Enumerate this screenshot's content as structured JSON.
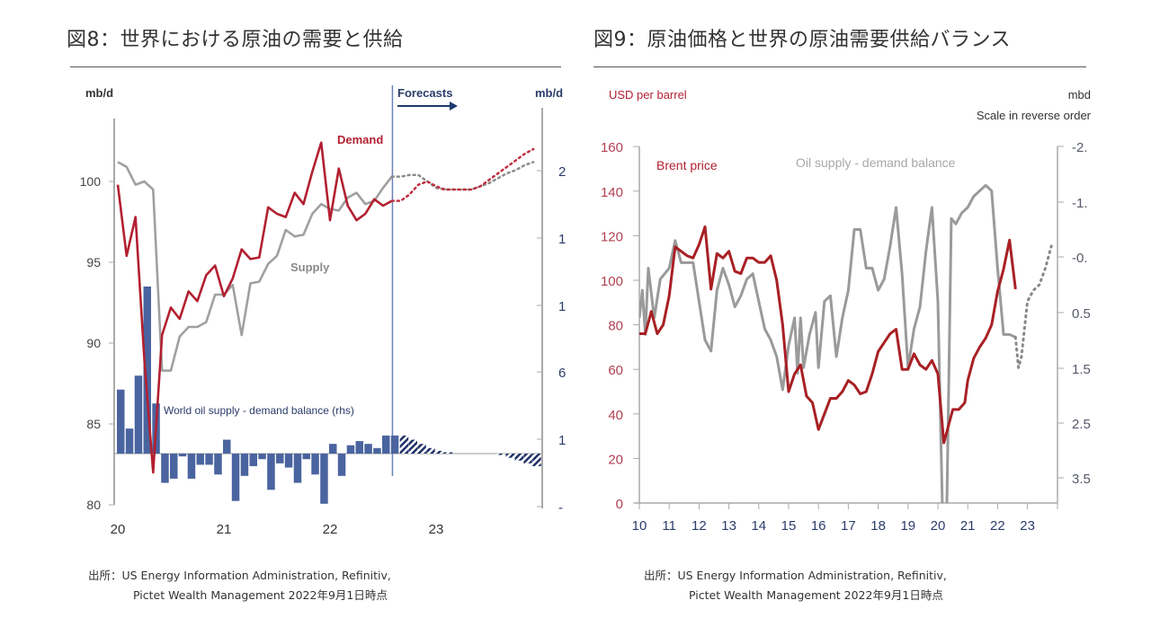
{
  "figures": [
    {
      "title": "図8：世界における原油の需要と供給",
      "source_line1": "出所：US Energy Information Administration,  Refinitiv,",
      "source_line2": "Pictet Wealth Management  2022年9月1日時点"
    },
    {
      "title": "図9：原油価格と世界の原油需要供給バランス",
      "source_line1": "出所：US Energy Information Administration, Refinitiv,",
      "source_line2": "Pictet Wealth Management  2022年9月1日時点"
    }
  ],
  "colors": {
    "demand": "#b22030",
    "supply": "#a0a0a0",
    "balance_bar": "#4a64a0",
    "forecast_line": "#6a84b8",
    "brent": "#a82024",
    "balance_line": "#9a9a9a",
    "axis_text_left_red": "#b04050",
    "navy_text": "#2a3c6a"
  },
  "chart_data": [
    {
      "type": "line",
      "title": "図8：世界における原油の需要と供給",
      "ylabel_left": "mb/d",
      "ylabel_right": "mb/d",
      "ylim_left": [
        80,
        103
      ],
      "yticks_left": [
        "100",
        "95",
        "90",
        "85",
        "80"
      ],
      "ytick_values_left": [
        100,
        95,
        90,
        85,
        80
      ],
      "yticks_right_labels": [
        "2",
        "1",
        "1",
        "6",
        "1",
        "-"
      ],
      "xticks": [
        "20",
        "21",
        "22",
        "23"
      ],
      "xtick_values": [
        2020,
        2021,
        2022,
        2023
      ],
      "forecast_label": "Forecasts",
      "forecast_start": 2022.58,
      "annotations": {
        "demand": "Demand",
        "supply": "Supply",
        "balance": "World oil supply - demand balance (rhs)"
      },
      "series": [
        {
          "name": "Demand",
          "x": [
            2020.0,
            2020.083,
            2020.167,
            2020.25,
            2020.333,
            2020.417,
            2020.5,
            2020.583,
            2020.667,
            2020.75,
            2020.833,
            2020.917,
            2021.0,
            2021.083,
            2021.167,
            2021.25,
            2021.333,
            2021.417,
            2021.5,
            2021.583,
            2021.667,
            2021.75,
            2021.833,
            2021.917,
            2022.0,
            2022.083,
            2022.167,
            2022.25,
            2022.333,
            2022.417,
            2022.5,
            2022.583
          ],
          "values": [
            99.8,
            95.4,
            97.8,
            89.0,
            82.0,
            90.5,
            92.2,
            91.5,
            93.2,
            92.6,
            94.2,
            94.8,
            92.9,
            94.0,
            95.8,
            95.2,
            95.3,
            98.4,
            98.0,
            97.8,
            99.3,
            98.6,
            100.6,
            102.4,
            97.6,
            100.8,
            98.5,
            97.6,
            98.0,
            98.9,
            98.5,
            98.8
          ]
        },
        {
          "name": "Supply",
          "x": [
            2020.0,
            2020.083,
            2020.167,
            2020.25,
            2020.333,
            2020.417,
            2020.5,
            2020.583,
            2020.667,
            2020.75,
            2020.833,
            2020.917,
            2021.0,
            2021.083,
            2021.167,
            2021.25,
            2021.333,
            2021.417,
            2021.5,
            2021.583,
            2021.667,
            2021.75,
            2021.833,
            2021.917,
            2022.0,
            2022.083,
            2022.167,
            2022.25,
            2022.333,
            2022.417,
            2022.5,
            2022.583
          ],
          "values": [
            101.2,
            100.9,
            99.8,
            100.0,
            99.5,
            88.3,
            88.3,
            90.4,
            91.0,
            91.0,
            91.3,
            93.0,
            93.0,
            93.6,
            90.5,
            93.7,
            93.8,
            94.9,
            95.4,
            97.0,
            96.6,
            96.7,
            98.0,
            98.6,
            98.3,
            98.2,
            99.0,
            99.3,
            98.6,
            98.8,
            99.6,
            100.3
          ]
        },
        {
          "name": "Demand forecast",
          "style": "dotted",
          "x": [
            2022.583,
            2022.667,
            2022.75,
            2022.833,
            2022.917,
            2023.0,
            2023.083,
            2023.167,
            2023.25,
            2023.333,
            2023.417,
            2023.5,
            2023.583,
            2023.667,
            2023.75,
            2023.833,
            2023.917
          ],
          "values": [
            98.8,
            98.8,
            99.2,
            99.8,
            100.0,
            99.7,
            99.5,
            99.5,
            99.5,
            99.5,
            99.7,
            100.1,
            100.5,
            100.9,
            101.3,
            101.7,
            102.0
          ]
        },
        {
          "name": "Supply forecast",
          "style": "dotted",
          "x": [
            2022.583,
            2022.667,
            2022.75,
            2022.833,
            2022.917,
            2023.0,
            2023.083,
            2023.167,
            2023.25,
            2023.333,
            2023.417,
            2023.5,
            2023.583,
            2023.667,
            2023.75,
            2023.833,
            2023.917
          ],
          "values": [
            100.3,
            100.3,
            100.4,
            100.4,
            100.0,
            99.6,
            99.5,
            99.5,
            99.5,
            99.5,
            99.7,
            99.9,
            100.2,
            100.5,
            100.7,
            101.0,
            101.2
          ]
        },
        {
          "name": "World oil supply - demand balance (rhs)",
          "type": "bar",
          "x": [
            2020.0,
            2020.083,
            2020.167,
            2020.25,
            2020.333,
            2020.417,
            2020.5,
            2020.583,
            2020.667,
            2020.75,
            2020.833,
            2020.917,
            2021.0,
            2021.083,
            2021.167,
            2021.25,
            2021.333,
            2021.417,
            2021.5,
            2021.583,
            2021.667,
            2021.75,
            2021.833,
            2021.917,
            2022.0,
            2022.083,
            2022.167,
            2022.25,
            2022.333,
            2022.417,
            2022.5,
            2022.583
          ],
          "values": [
            4.6,
            1.8,
            5.6,
            12.0,
            3.6,
            -2.1,
            -1.8,
            -0.2,
            -1.8,
            -0.8,
            -0.8,
            -1.5,
            1.0,
            -3.4,
            -1.6,
            -0.9,
            -0.4,
            -2.6,
            -0.7,
            -1.0,
            -2.1,
            -0.4,
            -1.5,
            -3.6,
            0.7,
            -1.6,
            0.6,
            0.9,
            0.7,
            0.4,
            1.3,
            1.3
          ]
        },
        {
          "name": "Balance forecast",
          "type": "bar",
          "style": "hatched",
          "x": [
            2022.667,
            2022.75,
            2022.833,
            2022.917,
            2023.0,
            2023.083,
            2023.167,
            2023.25,
            2023.333,
            2023.417,
            2023.5,
            2023.583,
            2023.667,
            2023.75,
            2023.833,
            2023.917
          ],
          "values": [
            1.3,
            1.0,
            0.7,
            0.4,
            0.2,
            0.1,
            0.0,
            0.0,
            0.0,
            0.0,
            0.0,
            -0.1,
            -0.3,
            -0.5,
            -0.7,
            -0.9
          ]
        }
      ]
    },
    {
      "type": "line",
      "title": "図9：原油価格と世界の原油需要供給バランス",
      "ylabel_left": "USD per barrel",
      "ylabel_right": "mbd",
      "ylabel_right_note": "Scale in reverse order",
      "ylim_left": [
        0,
        160
      ],
      "yticks_left": [
        "160",
        "140",
        "120",
        "100",
        "80",
        "60",
        "40",
        "20",
        "0"
      ],
      "ytick_values_left": [
        160,
        140,
        120,
        100,
        80,
        60,
        40,
        20,
        0
      ],
      "yticks_right_labels": [
        "-2.",
        "-1.",
        "-0.",
        "0.5",
        "1.5",
        "2.5",
        "3.5"
      ],
      "xticks": [
        "10",
        "11",
        "12",
        "13",
        "14",
        "15",
        "16",
        "17",
        "18",
        "19",
        "20",
        "21",
        "22",
        "23"
      ],
      "xtick_values": [
        2010,
        2011,
        2012,
        2013,
        2014,
        2015,
        2016,
        2017,
        2018,
        2019,
        2020,
        2021,
        2022,
        2023
      ],
      "annotations": {
        "brent": "Brent price",
        "balance": "Oil supply - demand balance"
      },
      "series": [
        {
          "name": "Brent price",
          "x": [
            2010.0,
            2010.2,
            2010.4,
            2010.6,
            2010.8,
            2011.0,
            2011.2,
            2011.4,
            2011.6,
            2011.8,
            2012.0,
            2012.2,
            2012.4,
            2012.6,
            2012.8,
            2013.0,
            2013.2,
            2013.4,
            2013.6,
            2013.8,
            2014.0,
            2014.2,
            2014.4,
            2014.6,
            2014.8,
            2015.0,
            2015.2,
            2015.4,
            2015.6,
            2015.8,
            2016.0,
            2016.2,
            2016.4,
            2016.6,
            2016.8,
            2017.0,
            2017.2,
            2017.4,
            2017.6,
            2017.8,
            2018.0,
            2018.2,
            2018.4,
            2018.6,
            2018.8,
            2019.0,
            2019.2,
            2019.4,
            2019.6,
            2019.8,
            2020.0,
            2020.2,
            2020.3,
            2020.5,
            2020.7,
            2020.9,
            2021.0,
            2021.2,
            2021.4,
            2021.6,
            2021.8,
            2022.0,
            2022.2,
            2022.4,
            2022.6
          ],
          "values": [
            76,
            76,
            86,
            76,
            80,
            93,
            115,
            113,
            111,
            110,
            116,
            124,
            96,
            112,
            110,
            113,
            104,
            103,
            110,
            110,
            108,
            108,
            111,
            100,
            80,
            50,
            58,
            62,
            48,
            45,
            33,
            40,
            47,
            47,
            50,
            55,
            53,
            49,
            50,
            58,
            68,
            72,
            76,
            78,
            60,
            60,
            67,
            62,
            60,
            64,
            58,
            27,
            32,
            42,
            42,
            45,
            55,
            65,
            70,
            74,
            80,
            95,
            105,
            118,
            96
          ]
        },
        {
          "name": "Oil supply - demand balance",
          "axis": "right",
          "x": [
            2010.0,
            2010.1,
            2010.2,
            2010.3,
            2010.5,
            2010.7,
            2011.0,
            2011.2,
            2011.4,
            2011.6,
            2011.8,
            2012.0,
            2012.2,
            2012.4,
            2012.6,
            2012.8,
            2013.0,
            2013.2,
            2013.4,
            2013.6,
            2013.8,
            2014.0,
            2014.2,
            2014.4,
            2014.6,
            2014.8,
            2015.0,
            2015.2,
            2015.3,
            2015.4,
            2015.5,
            2015.7,
            2015.9,
            2016.0,
            2016.2,
            2016.4,
            2016.6,
            2016.8,
            2017.0,
            2017.2,
            2017.4,
            2017.6,
            2017.8,
            2018.0,
            2018.2,
            2018.4,
            2018.6,
            2018.8,
            2019.0,
            2019.2,
            2019.4,
            2019.6,
            2019.8,
            2020.0,
            2020.15,
            2020.3,
            2020.45,
            2020.6,
            2020.8,
            2021.0,
            2021.2,
            2021.4,
            2021.6,
            2021.8,
            2022.0,
            2022.2,
            2022.4,
            2022.6
          ],
          "values": [
            0.6,
            0.1,
            0.9,
            -0.3,
            0.6,
            -0.1,
            -0.3,
            -0.8,
            -0.4,
            -0.4,
            -0.4,
            0.3,
            1.0,
            1.2,
            0.1,
            -0.3,
            0.0,
            0.4,
            0.2,
            -0.1,
            -0.2,
            0.3,
            0.8,
            1.0,
            1.3,
            1.9,
            1.1,
            0.6,
            1.6,
            0.6,
            1.5,
            0.9,
            0.5,
            1.5,
            0.3,
            0.2,
            1.3,
            0.6,
            0.1,
            -1.0,
            -1.0,
            -0.3,
            -0.3,
            0.1,
            -0.1,
            -0.7,
            -1.4,
            -0.2,
            1.5,
            0.8,
            0.4,
            -0.6,
            -1.4,
            0.3,
            4.0,
            4.0,
            -1.2,
            -1.1,
            -1.3,
            -1.4,
            -1.6,
            -1.7,
            -1.8,
            -1.7,
            -0.3,
            0.9,
            0.9,
            0.95
          ]
        },
        {
          "name": "Balance forecast",
          "axis": "right",
          "style": "dotted",
          "x": [
            2022.6,
            2022.7,
            2022.8,
            2022.9,
            2023.0,
            2023.2,
            2023.4,
            2023.6,
            2023.8
          ],
          "values": [
            0.95,
            1.5,
            1.3,
            0.8,
            0.3,
            0.1,
            0.0,
            -0.3,
            -0.7
          ]
        }
      ]
    }
  ]
}
